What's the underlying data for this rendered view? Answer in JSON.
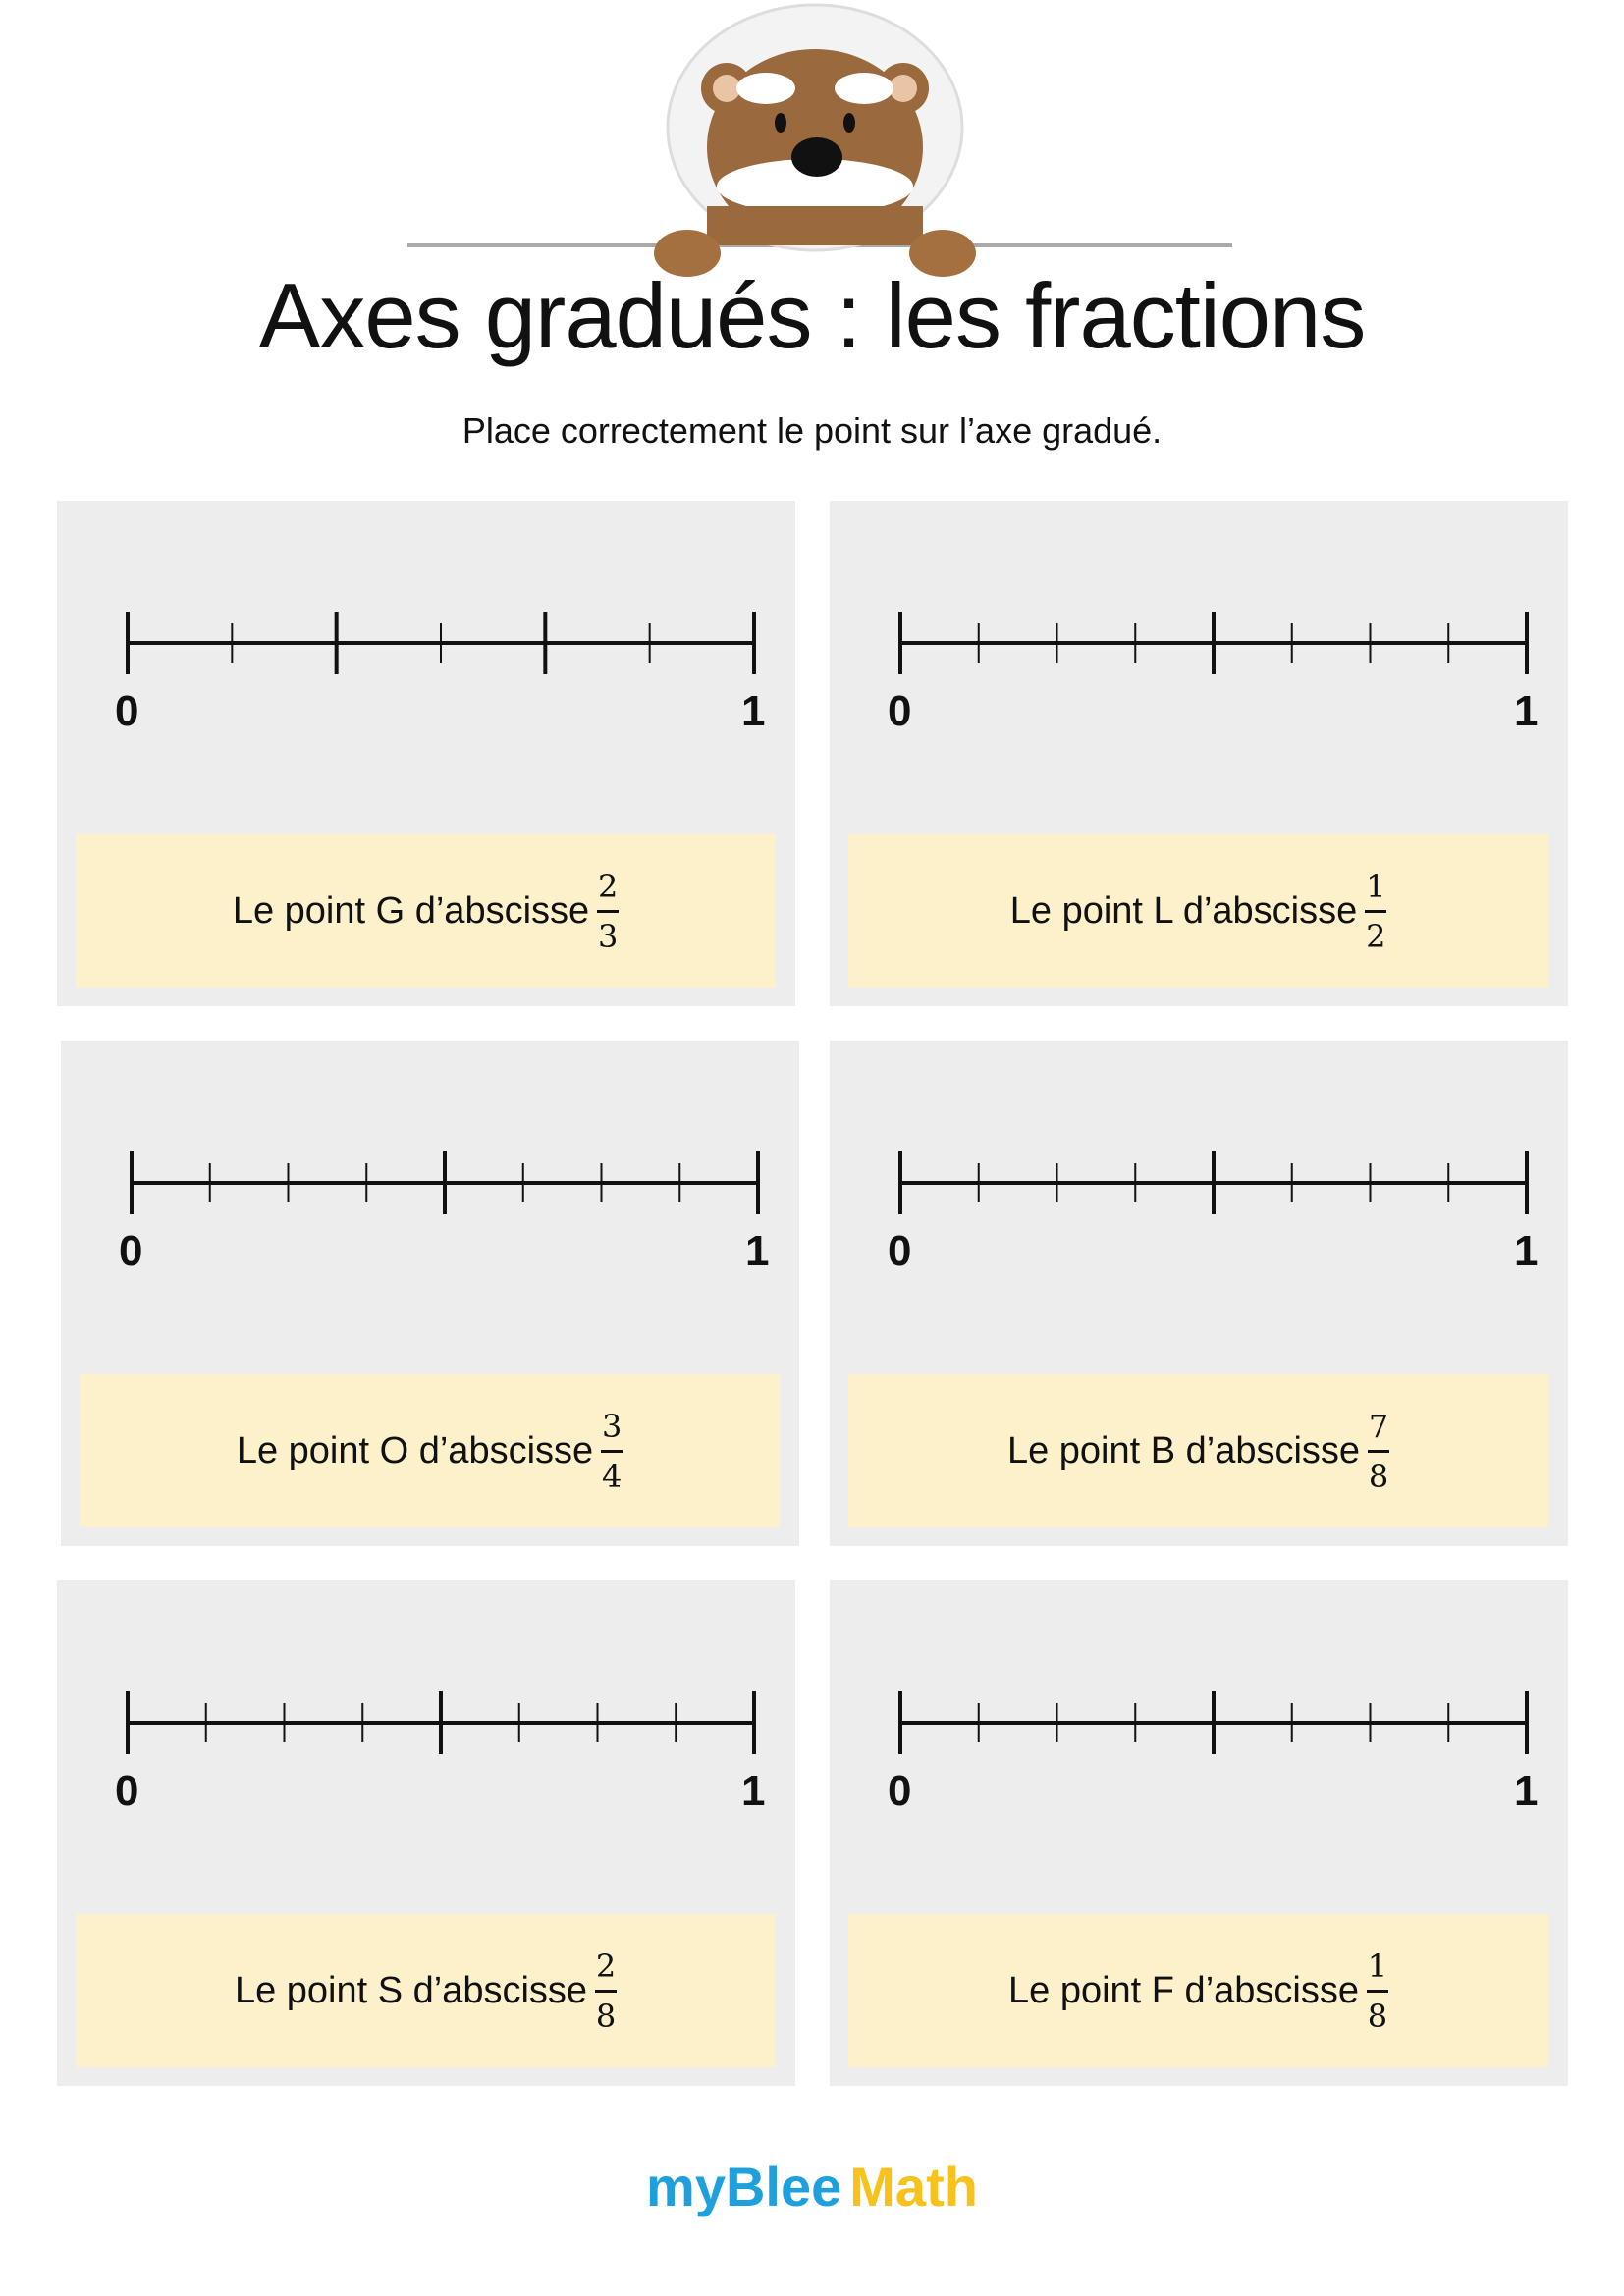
{
  "header": {
    "title": "Axes gradués : les fractions",
    "subtitle": "Place correctement le point sur l’axe gradué.",
    "mascot_icon": "bear-mascot"
  },
  "exercises": [
    {
      "axis_start": "0",
      "axis_end": "1",
      "divisions": 6,
      "major_every": 2,
      "text": "Le point G d’abscisse",
      "numerator": "2",
      "denominator": "3"
    },
    {
      "axis_start": "0",
      "axis_end": "1",
      "divisions": 8,
      "major_every": 4,
      "text": "Le point L d’abscisse",
      "numerator": "1",
      "denominator": "2"
    },
    {
      "axis_start": "0",
      "axis_end": "1",
      "divisions": 8,
      "major_every": 4,
      "text": "Le point O d’abscisse",
      "numerator": "3",
      "denominator": "4"
    },
    {
      "axis_start": "0",
      "axis_end": "1",
      "divisions": 8,
      "major_every": 4,
      "text": "Le point B d’abscisse",
      "numerator": "7",
      "denominator": "8"
    },
    {
      "axis_start": "0",
      "axis_end": "1",
      "divisions": 8,
      "major_every": 4,
      "text": "Le point S d’abscisse",
      "numerator": "2",
      "denominator": "8"
    },
    {
      "axis_start": "0",
      "axis_end": "1",
      "divisions": 8,
      "major_every": 4,
      "text": "Le point F d’abscisse",
      "numerator": "1",
      "denominator": "8"
    }
  ],
  "footer": {
    "logo_part1": "myBlee",
    "logo_part2": "Math",
    "logo_color1": "#1ea0dc",
    "logo_color2": "#f7c21b"
  },
  "colors": {
    "panel_bg": "#ededed",
    "box_bg": "#fdf1cc"
  }
}
